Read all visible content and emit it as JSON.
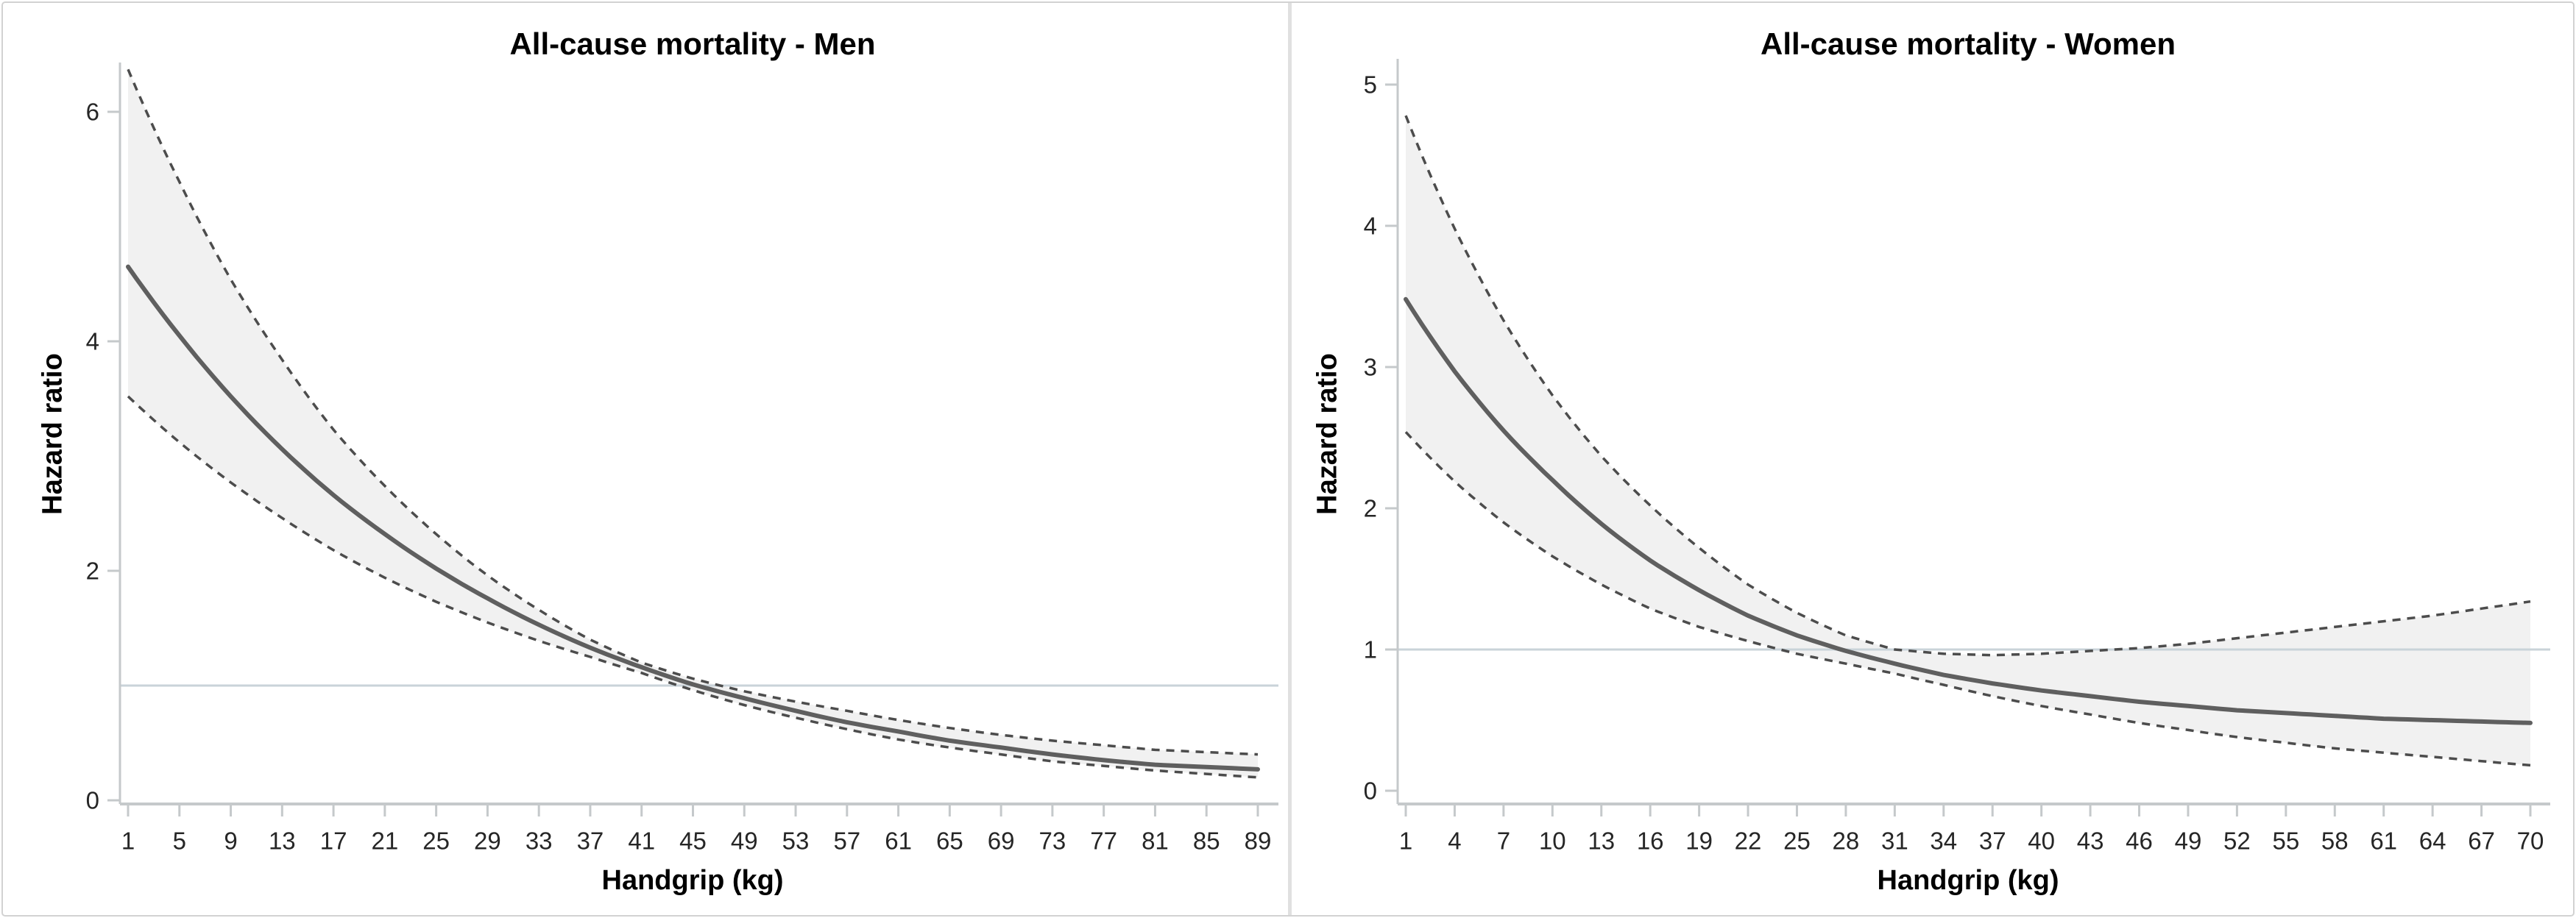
{
  "figure": {
    "description_colors": {
      "solid_curve": "#5f5f5f",
      "ci_dashed": "#4c4c4c",
      "ci_band_fill": "#f1f1f1",
      "reference_line": "#c9d3d9",
      "axis_line": "#c5c9cb",
      "tick_label": "#262626"
    }
  },
  "chart_data": [
    {
      "type": "line",
      "title": "All-cause mortality - Men",
      "xlabel": "Handgrip (kg)",
      "ylabel": "Hazard ratio",
      "xlim": [
        1,
        89
      ],
      "ylim": [
        0,
        6.4
      ],
      "x_ticks": [
        1,
        5,
        9,
        13,
        17,
        21,
        25,
        29,
        33,
        37,
        41,
        45,
        49,
        53,
        57,
        61,
        65,
        69,
        73,
        77,
        81,
        85,
        89
      ],
      "y_ticks": [
        0,
        2,
        4,
        6
      ],
      "ref_line_y": 1,
      "grid": false,
      "legend": "none",
      "x": [
        1,
        5,
        9,
        13,
        17,
        21,
        25,
        29,
        33,
        37,
        41,
        45,
        49,
        53,
        57,
        61,
        65,
        69,
        73,
        77,
        81,
        85,
        89
      ],
      "series": [
        {
          "name": "hazard_ratio",
          "style": "solid",
          "values": [
            4.65,
            4.05,
            3.52,
            3.06,
            2.66,
            2.32,
            2.02,
            1.76,
            1.53,
            1.33,
            1.16,
            1.01,
            0.89,
            0.78,
            0.68,
            0.6,
            0.52,
            0.46,
            0.4,
            0.35,
            0.31,
            0.29,
            0.27
          ]
        },
        {
          "name": "upper_95ci",
          "style": "dashed",
          "values": [
            6.37,
            5.39,
            4.54,
            3.84,
            3.23,
            2.74,
            2.32,
            1.96,
            1.66,
            1.4,
            1.2,
            1.06,
            0.95,
            0.86,
            0.78,
            0.7,
            0.63,
            0.57,
            0.52,
            0.48,
            0.44,
            0.42,
            0.4
          ]
        },
        {
          "name": "lower_95ci",
          "style": "dashed",
          "values": [
            3.52,
            3.12,
            2.77,
            2.46,
            2.18,
            1.94,
            1.73,
            1.55,
            1.39,
            1.25,
            1.11,
            0.96,
            0.83,
            0.72,
            0.62,
            0.53,
            0.46,
            0.4,
            0.34,
            0.3,
            0.26,
            0.23,
            0.2
          ]
        }
      ],
      "band": {
        "upper": "upper_95ci",
        "lower": "lower_95ci"
      }
    },
    {
      "type": "line",
      "title": "All-cause mortality - Women",
      "xlabel": "Handgrip (kg)",
      "ylabel": "Hazard ratio",
      "xlim": [
        1,
        70
      ],
      "ylim": [
        0,
        5.2
      ],
      "x_ticks": [
        1,
        4,
        7,
        10,
        13,
        16,
        19,
        22,
        25,
        28,
        31,
        34,
        37,
        40,
        43,
        46,
        49,
        52,
        55,
        58,
        61,
        64,
        67,
        70
      ],
      "y_ticks": [
        0,
        1,
        2,
        3,
        4,
        5
      ],
      "ref_line_y": 1,
      "grid": false,
      "legend": "none",
      "x": [
        1,
        4,
        7,
        10,
        13,
        16,
        19,
        22,
        25,
        28,
        31,
        34,
        37,
        40,
        43,
        46,
        49,
        52,
        55,
        58,
        61,
        64,
        67,
        70
      ],
      "series": [
        {
          "name": "hazard_ratio",
          "style": "solid",
          "values": [
            3.48,
            2.97,
            2.55,
            2.2,
            1.89,
            1.63,
            1.42,
            1.24,
            1.1,
            0.99,
            0.9,
            0.82,
            0.76,
            0.71,
            0.67,
            0.63,
            0.6,
            0.57,
            0.55,
            0.53,
            0.51,
            0.5,
            0.49,
            0.48
          ]
        },
        {
          "name": "upper_95ci",
          "style": "dashed",
          "values": [
            4.78,
            3.98,
            3.33,
            2.8,
            2.37,
            2.02,
            1.72,
            1.46,
            1.26,
            1.1,
            1.0,
            0.97,
            0.96,
            0.97,
            0.99,
            1.01,
            1.04,
            1.08,
            1.12,
            1.16,
            1.2,
            1.24,
            1.29,
            1.34
          ]
        },
        {
          "name": "lower_95ci",
          "style": "dashed",
          "values": [
            2.54,
            2.19,
            1.9,
            1.66,
            1.46,
            1.29,
            1.16,
            1.06,
            0.97,
            0.9,
            0.83,
            0.75,
            0.67,
            0.6,
            0.54,
            0.48,
            0.43,
            0.38,
            0.34,
            0.3,
            0.27,
            0.24,
            0.21,
            0.18
          ]
        }
      ],
      "band": {
        "upper": "upper_95ci",
        "lower": "lower_95ci"
      }
    }
  ]
}
